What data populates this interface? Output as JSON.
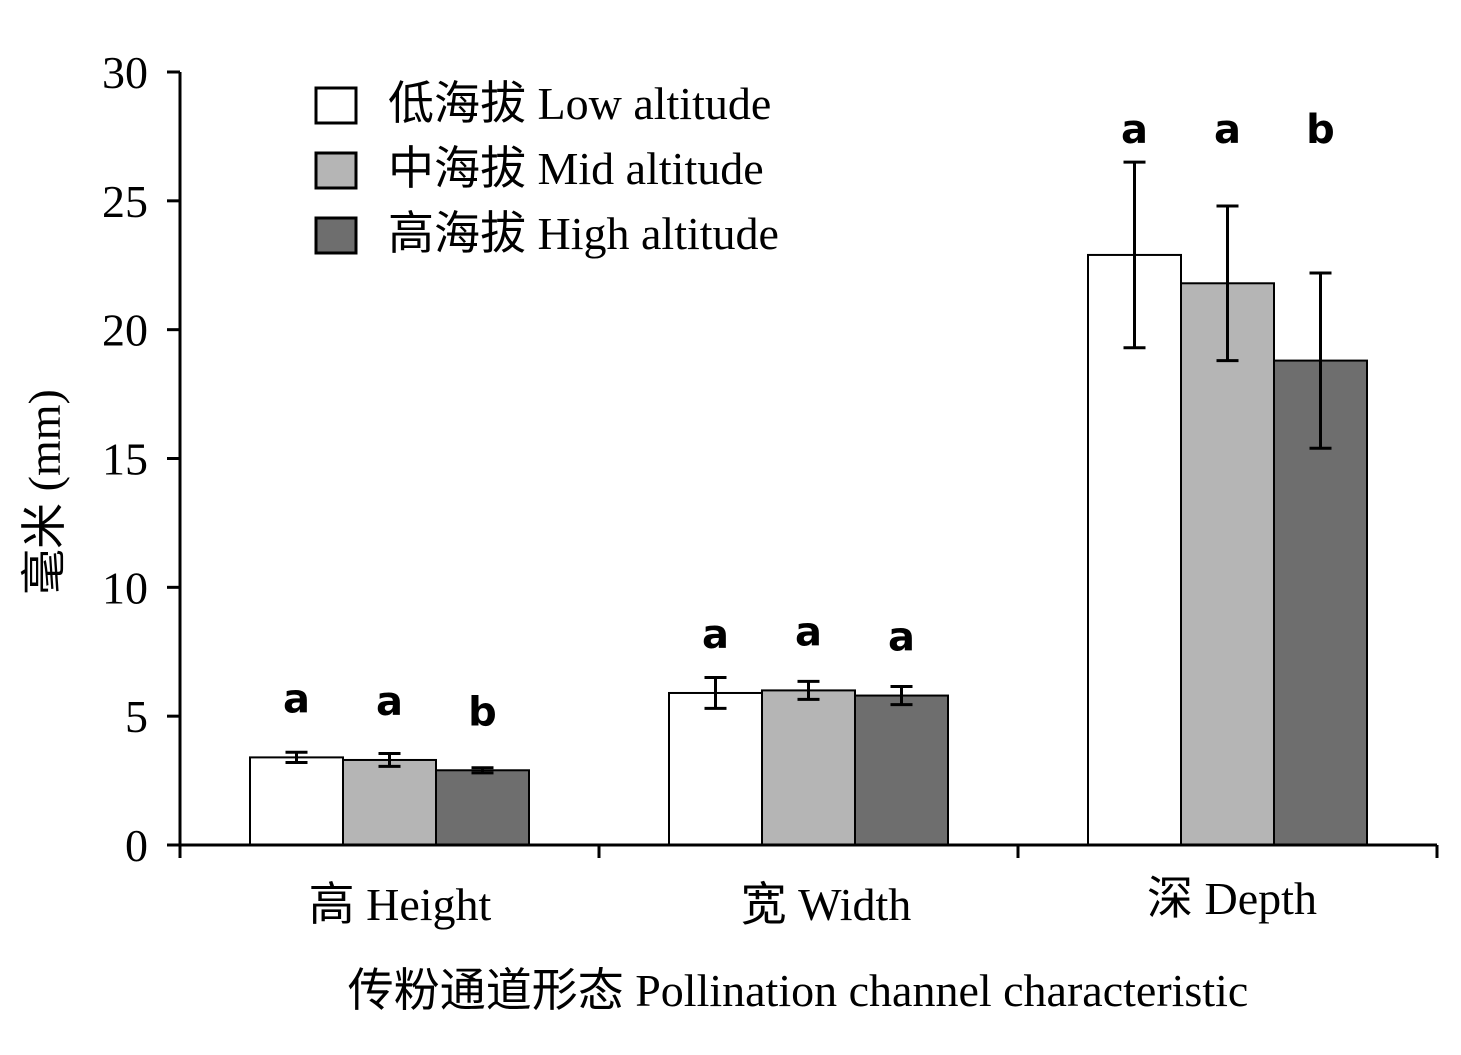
{
  "chart_data": {
    "type": "bar",
    "xlabel": "传粉通道形态 Pollination channel characteristic",
    "ylabel": "毫米 (mm)",
    "ylim": [
      0,
      30
    ],
    "yticks": [
      0,
      5,
      10,
      15,
      20,
      25,
      30
    ],
    "categories": [
      "高 Height",
      "宽 Width",
      "深 Depth"
    ],
    "legend_position": "top-left",
    "grid": false,
    "series": [
      {
        "name": "低海拔 Low altitude",
        "color": "#ffffff",
        "values": [
          3.4,
          5.9,
          22.9
        ],
        "errors": [
          0.2,
          0.6,
          3.6
        ],
        "significance": [
          "a",
          "a",
          "a"
        ]
      },
      {
        "name": "中海拔 Mid altitude",
        "color": "#b5b5b5",
        "values": [
          3.3,
          6.0,
          21.8
        ],
        "errors": [
          0.25,
          0.35,
          3.0
        ],
        "significance": [
          "a",
          "a",
          "a"
        ]
      },
      {
        "name": "高海拔 High altitude",
        "color": "#6e6e6e",
        "values": [
          2.9,
          5.8,
          18.8
        ],
        "errors": [
          0.1,
          0.35,
          3.4
        ],
        "significance": [
          "b",
          "a",
          "b"
        ]
      }
    ]
  }
}
